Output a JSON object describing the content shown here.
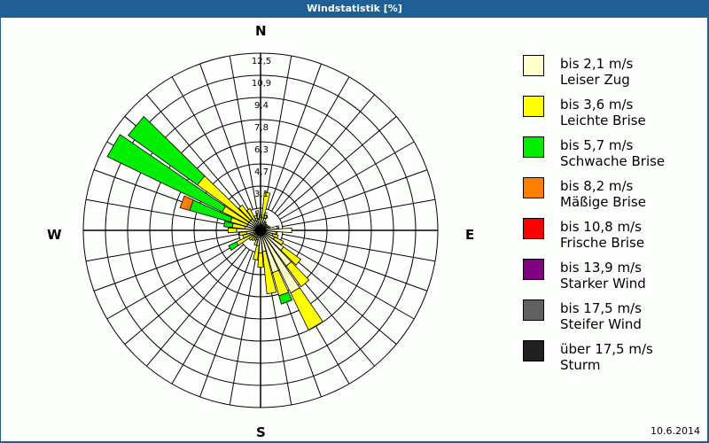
{
  "window": {
    "title": "Windstatistik [%]"
  },
  "compass": {
    "north": "N",
    "east": "E",
    "south": "S",
    "west": "W"
  },
  "footer": {
    "date": "10.6.2014"
  },
  "legend": [
    {
      "range": "bis 2,1 m/s",
      "name": "Leiser Zug",
      "color": "#ffffcc"
    },
    {
      "range": "bis 3,6 m/s",
      "name": "Leichte Brise",
      "color": "#ffff00"
    },
    {
      "range": "bis 5,7 m/s",
      "name": "Schwache Brise",
      "color": "#00ee00"
    },
    {
      "range": "bis 8,2 m/s",
      "name": "Mäßige Brise",
      "color": "#ff8000"
    },
    {
      "range": "bis 10,8 m/s",
      "name": "Frische Brise",
      "color": "#ff0000"
    },
    {
      "range": "bis 13,9 m/s",
      "name": "Starker Wind",
      "color": "#800080"
    },
    {
      "range": "bis 17,5 m/s",
      "name": "Steifer Wind",
      "color": "#606060"
    },
    {
      "range": "über 17,5 m/s",
      "name": "Sturm",
      "color": "#202020"
    }
  ],
  "chart_data": {
    "type": "wind-rose (stacked polar bar)",
    "title": "Windstatistik [%]",
    "radial_unit": "%",
    "radial_ticks": [
      "1,6",
      "3,1",
      "4,7",
      "6,3",
      "7,8",
      "9,4",
      "10,9",
      "12,5"
    ],
    "radial_max": 12.5,
    "direction_step_deg": 10,
    "legend_position": "right",
    "grid": true,
    "date": "10.6.2014",
    "series": [
      "Leiser Zug",
      "Leichte Brise",
      "Schwache Brise",
      "Mäßige Brise",
      "Frische Brise",
      "Starker Wind",
      "Steifer Wind",
      "Sturm"
    ],
    "cumulative_note": "values are cumulative % per direction: [Leiser Zug, +Leichte Brise, +Schwache Brise, +Mäßige Brise]",
    "directions": [
      {
        "deg": 0,
        "cum": [
          0.9,
          1.0,
          1.0,
          1.0
        ]
      },
      {
        "deg": 10,
        "cum": [
          0.9,
          2.7,
          2.7,
          2.7
        ]
      },
      {
        "deg": 20,
        "cum": [
          0.9,
          1.1,
          1.1,
          1.1
        ]
      },
      {
        "deg": 30,
        "cum": [
          0.6,
          0.7,
          0.7,
          0.7
        ]
      },
      {
        "deg": 40,
        "cum": [
          0.5,
          0.6,
          0.6,
          0.6
        ]
      },
      {
        "deg": 50,
        "cum": [
          0.5,
          0.6,
          0.6,
          0.6
        ]
      },
      {
        "deg": 60,
        "cum": [
          0.5,
          0.6,
          0.6,
          0.6
        ]
      },
      {
        "deg": 70,
        "cum": [
          0.6,
          0.7,
          0.7,
          0.7
        ]
      },
      {
        "deg": 80,
        "cum": [
          1.2,
          1.3,
          1.3,
          1.3
        ]
      },
      {
        "deg": 90,
        "cum": [
          2.2,
          2.2,
          2.2,
          2.2
        ]
      },
      {
        "deg": 100,
        "cum": [
          1.1,
          1.2,
          1.2,
          1.2
        ]
      },
      {
        "deg": 110,
        "cum": [
          0.9,
          1.3,
          1.3,
          1.3
        ]
      },
      {
        "deg": 120,
        "cum": [
          1.1,
          1.8,
          1.8,
          1.8
        ]
      },
      {
        "deg": 130,
        "cum": [
          2.0,
          3.5,
          3.5,
          3.5
        ]
      },
      {
        "deg": 140,
        "cum": [
          3.1,
          4.9,
          4.9,
          4.9
        ]
      },
      {
        "deg": 150,
        "cum": [
          4.9,
          7.8,
          7.8,
          7.8
        ]
      },
      {
        "deg": 160,
        "cum": [
          3.1,
          4.8,
          5.4,
          5.4
        ]
      },
      {
        "deg": 170,
        "cum": [
          1.5,
          4.5,
          4.5,
          4.5
        ]
      },
      {
        "deg": 180,
        "cum": [
          1.6,
          2.6,
          2.6,
          2.6
        ]
      },
      {
        "deg": 190,
        "cum": [
          1.1,
          2.1,
          2.1,
          2.1
        ]
      },
      {
        "deg": 200,
        "cum": [
          0.7,
          1.1,
          1.1,
          1.1
        ]
      },
      {
        "deg": 210,
        "cum": [
          0.6,
          0.8,
          0.8,
          0.8
        ]
      },
      {
        "deg": 220,
        "cum": [
          0.6,
          0.9,
          0.9,
          0.9
        ]
      },
      {
        "deg": 230,
        "cum": [
          0.6,
          1.0,
          1.0,
          1.0
        ]
      },
      {
        "deg": 240,
        "cum": [
          0.7,
          1.9,
          2.5,
          2.5
        ]
      },
      {
        "deg": 250,
        "cum": [
          0.8,
          1.3,
          1.3,
          1.3
        ]
      },
      {
        "deg": 260,
        "cum": [
          1.0,
          1.5,
          1.5,
          1.5
        ]
      },
      {
        "deg": 270,
        "cum": [
          1.7,
          2.3,
          2.3,
          2.3
        ]
      },
      {
        "deg": 280,
        "cum": [
          1.1,
          2.0,
          2.6,
          2.6
        ]
      },
      {
        "deg": 290,
        "cum": [
          1.0,
          2.2,
          5.2,
          5.9
        ]
      },
      {
        "deg": 300,
        "cum": [
          1.0,
          3.0,
          12.0,
          12.0
        ]
      },
      {
        "deg": 310,
        "cum": [
          1.0,
          5.5,
          11.5,
          11.5
        ]
      },
      {
        "deg": 320,
        "cum": [
          1.0,
          2.2,
          2.2,
          2.2
        ]
      },
      {
        "deg": 330,
        "cum": [
          0.8,
          1.7,
          1.7,
          1.7
        ]
      },
      {
        "deg": 340,
        "cum": [
          0.7,
          1.1,
          1.1,
          1.1
        ]
      },
      {
        "deg": 350,
        "cum": [
          0.8,
          1.4,
          1.4,
          1.4
        ]
      }
    ]
  }
}
